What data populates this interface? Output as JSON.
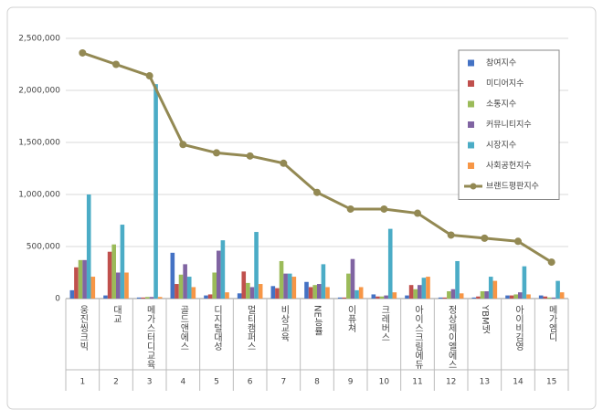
{
  "chart_data": {
    "type": "bar",
    "categories": [
      "웅진씽크빅",
      "대교",
      "메가스터디교육",
      "골드앤에스",
      "디지털대성",
      "멀티캠퍼스",
      "비상교육",
      "NE능률",
      "이퓨쳐",
      "크레버스",
      "아이스크림에듀",
      "정상제이엘에스",
      "YBM넷",
      "아이비김영",
      "메가엠디"
    ],
    "ranks": [
      "1",
      "2",
      "3",
      "4",
      "5",
      "6",
      "7",
      "8",
      "9",
      "10",
      "11",
      "12",
      "13",
      "14",
      "15"
    ],
    "series": [
      {
        "name": "참여지수",
        "color": "#4472c4",
        "values": [
          80000,
          30000,
          10000,
          440000,
          30000,
          50000,
          120000,
          160000,
          10000,
          40000,
          30000,
          10000,
          10000,
          30000,
          30000
        ]
      },
      {
        "name": "미디어지수",
        "color": "#c0504d",
        "values": [
          300000,
          450000,
          10000,
          140000,
          40000,
          260000,
          100000,
          110000,
          10000,
          20000,
          130000,
          10000,
          20000,
          30000,
          20000
        ]
      },
      {
        "name": "소통지수",
        "color": "#9bbb59",
        "values": [
          370000,
          520000,
          15000,
          230000,
          250000,
          150000,
          360000,
          130000,
          240000,
          20000,
          90000,
          70000,
          70000,
          40000,
          10000
        ]
      },
      {
        "name": "커뮤니티지수",
        "color": "#8064a2",
        "values": [
          370000,
          250000,
          15000,
          330000,
          460000,
          110000,
          240000,
          140000,
          380000,
          30000,
          130000,
          90000,
          70000,
          60000,
          10000
        ]
      },
      {
        "name": "시장지수",
        "color": "#4bacc6",
        "values": [
          1000000,
          710000,
          2060000,
          210000,
          560000,
          640000,
          240000,
          330000,
          80000,
          670000,
          200000,
          360000,
          210000,
          310000,
          170000
        ]
      },
      {
        "name": "사회공헌지수",
        "color": "#f79646",
        "values": [
          210000,
          250000,
          15000,
          110000,
          60000,
          140000,
          210000,
          110000,
          110000,
          60000,
          210000,
          50000,
          170000,
          40000,
          60000
        ]
      },
      {
        "name": "브랜드평판지수",
        "color": "#938953",
        "type": "line",
        "values": [
          2360000,
          2250000,
          2140000,
          1480000,
          1400000,
          1370000,
          1300000,
          1020000,
          860000,
          860000,
          820000,
          610000,
          580000,
          550000,
          350000
        ]
      }
    ],
    "ylim": [
      0,
      2500000
    ],
    "yticks": [
      0,
      {
        "value": 500000,
        "label": "500,000"
      },
      {
        "value": 1000000,
        "label": "1,000,000"
      },
      {
        "value": 1500000,
        "label": "1,500,000"
      },
      {
        "value": 2000000,
        "label": "2,000,000"
      },
      {
        "value": 2500000,
        "label": "2,500,000"
      }
    ],
    "grid": true,
    "legend": "upper right"
  }
}
